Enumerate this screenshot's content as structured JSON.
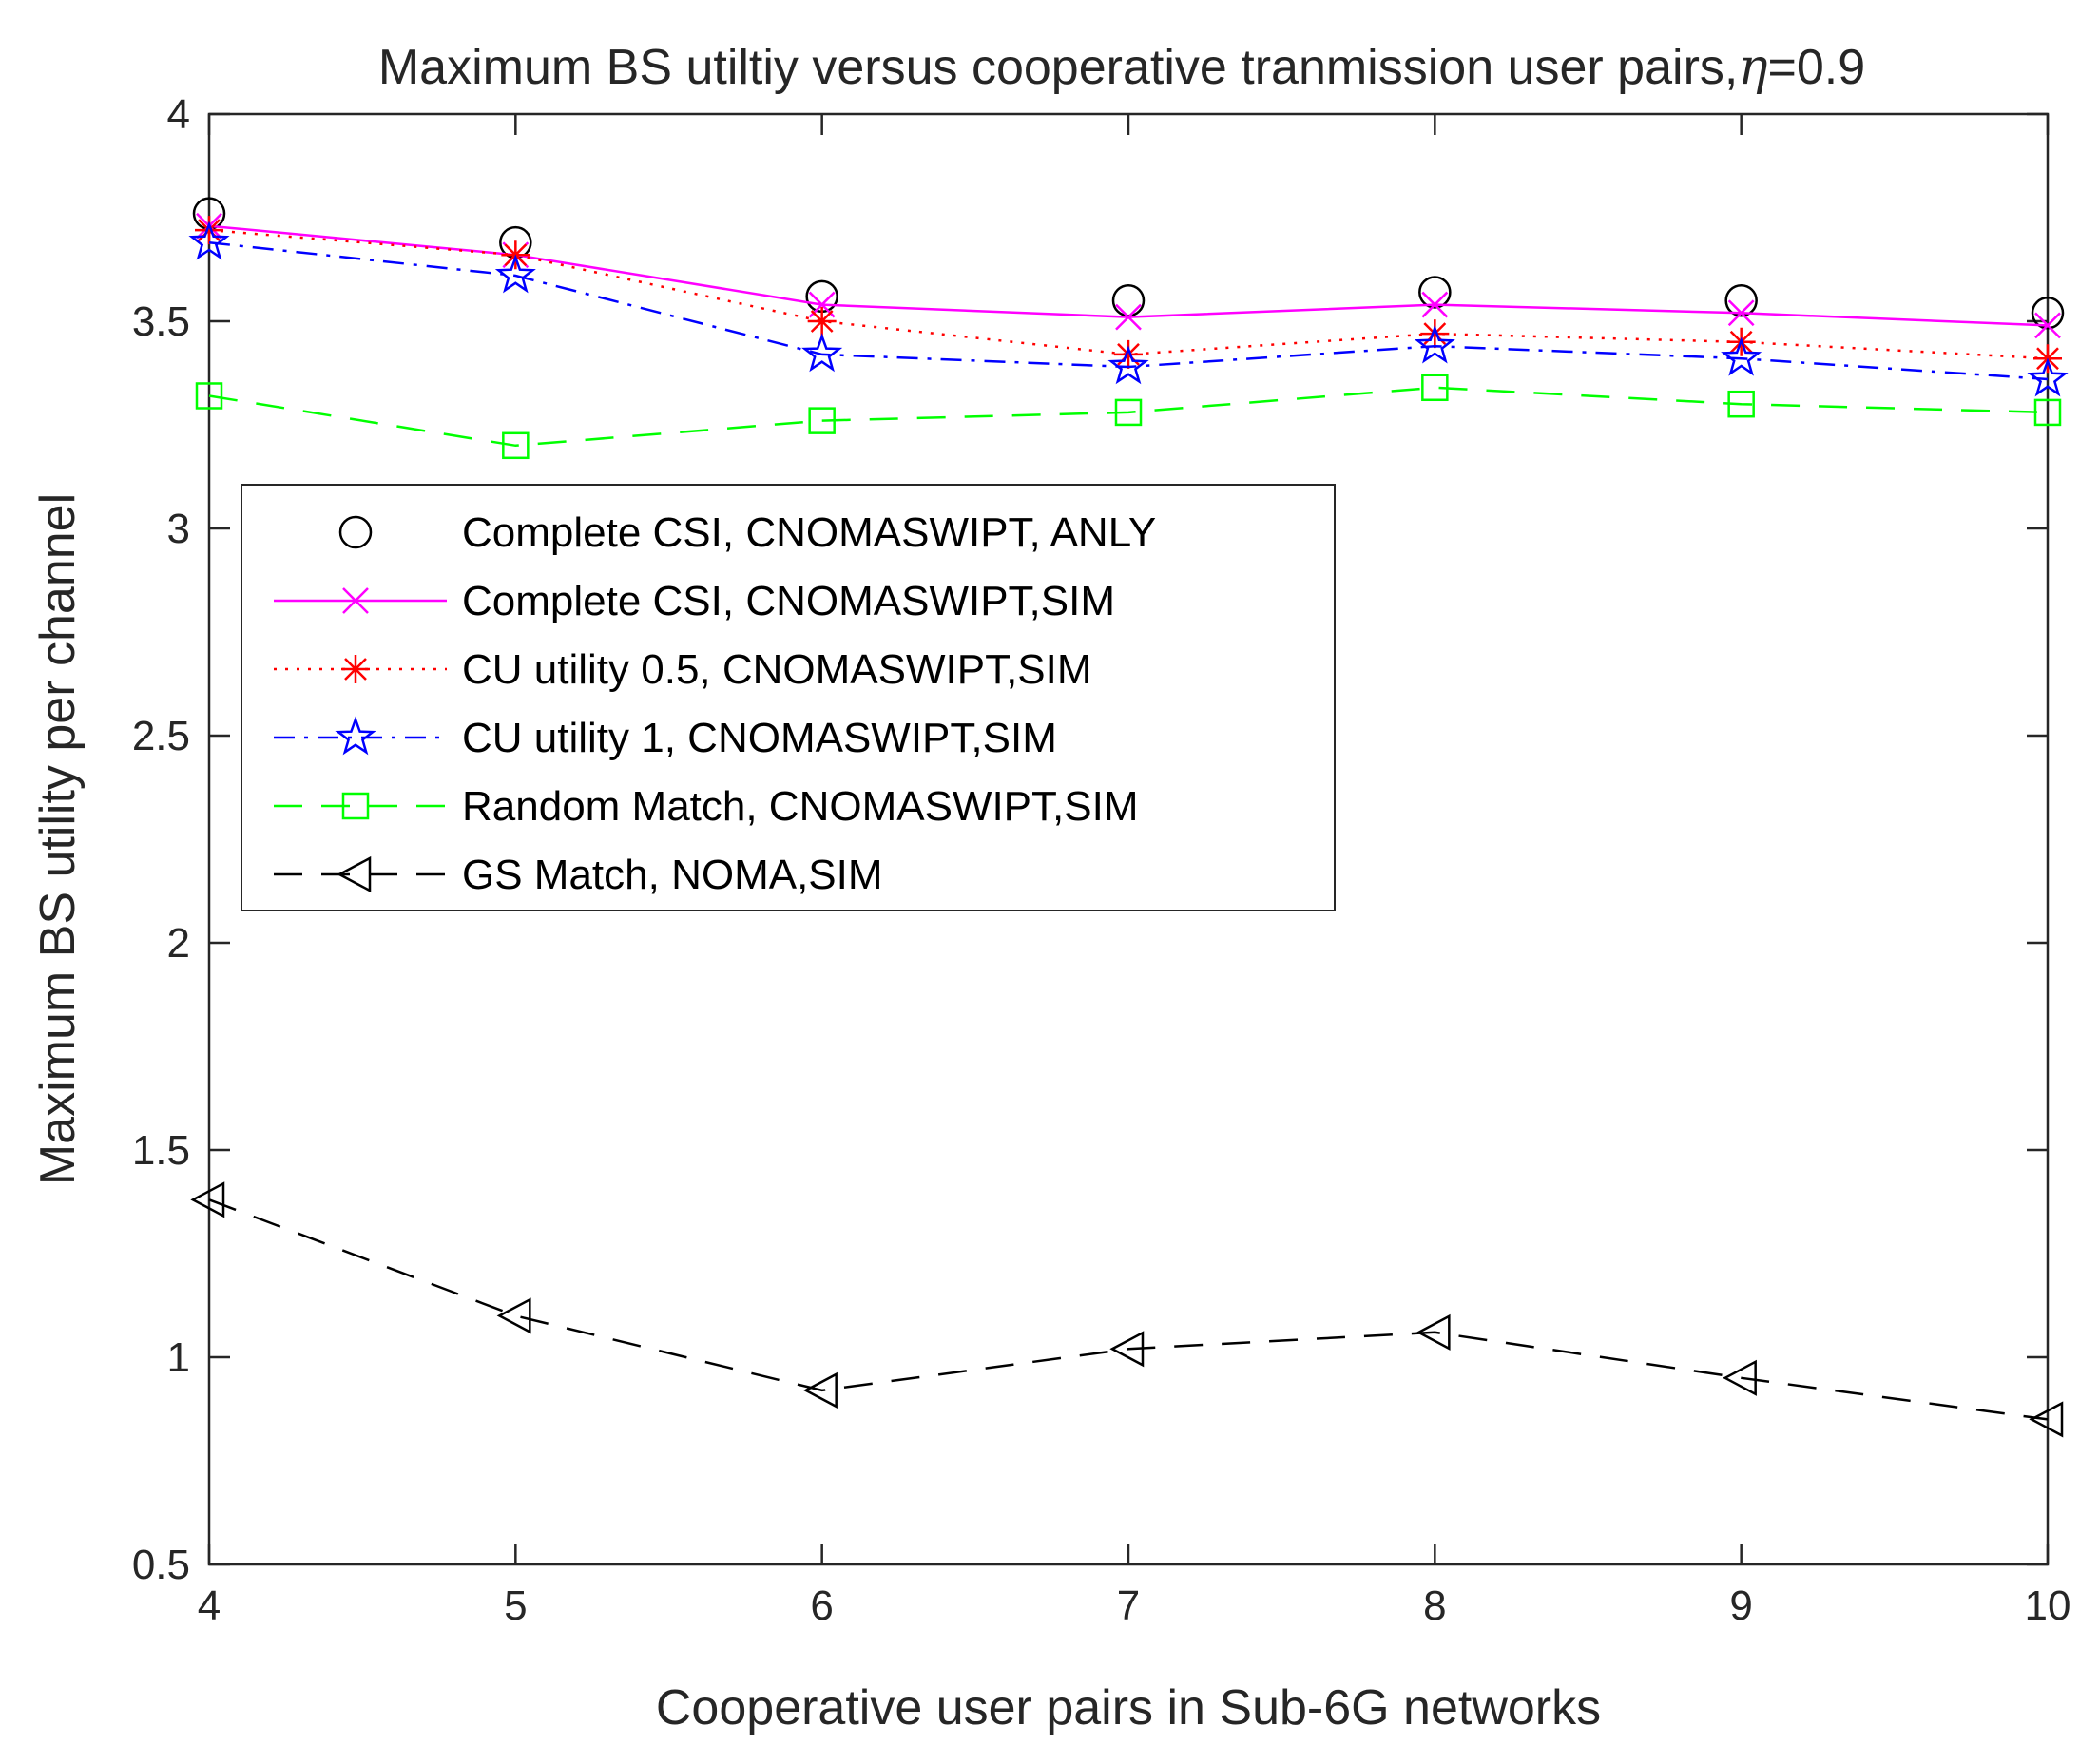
{
  "chart_data": {
    "type": "line",
    "title": "Maximum BS utiltiy versus cooperative tranmission user pairs,",
    "title_symbol": "η",
    "title_suffix": "=0.9",
    "xlabel": "Cooperative user pairs in Sub-6G networks",
    "ylabel": "Maximum BS utility per channel",
    "xlim": [
      4,
      10
    ],
    "ylim": [
      0.5,
      4
    ],
    "xticks": [
      "4",
      "5",
      "6",
      "7",
      "8",
      "9",
      "10"
    ],
    "yticks": [
      "0.5",
      "1",
      "1.5",
      "2",
      "2.5",
      "3",
      "3.5",
      "4"
    ],
    "grid": false,
    "legend_position": "center-left",
    "x": [
      4,
      5,
      6,
      7,
      8,
      9,
      10
    ],
    "series": [
      {
        "name": "Complete CSI, CNOMASWIPT, ANLY",
        "color": "#000000",
        "marker": "circle",
        "line": "none",
        "values": [
          3.76,
          3.69,
          3.56,
          3.55,
          3.57,
          3.55,
          3.52
        ]
      },
      {
        "name": "Complete CSI, CNOMASWIPT,SIM",
        "color": "#ff00ff",
        "marker": "x",
        "line": "solid",
        "values": [
          3.73,
          3.66,
          3.54,
          3.51,
          3.54,
          3.52,
          3.49
        ]
      },
      {
        "name": "CU utility 0.5, CNOMASWIPT,SIM",
        "color": "#ff0000",
        "marker": "asterisk",
        "line": "dotted",
        "values": [
          3.72,
          3.66,
          3.5,
          3.42,
          3.47,
          3.45,
          3.41
        ]
      },
      {
        "name": "CU utility 1,  CNOMASWIPT,SIM",
        "color": "#0000ff",
        "marker": "star",
        "line": "dashdot",
        "values": [
          3.69,
          3.61,
          3.42,
          3.39,
          3.44,
          3.41,
          3.36
        ]
      },
      {
        "name": "Random Match, CNOMASWIPT,SIM",
        "color": "#00ff00",
        "marker": "square",
        "line": "dashed",
        "values": [
          3.32,
          3.2,
          3.26,
          3.28,
          3.34,
          3.3,
          3.28
        ]
      },
      {
        "name": "GS Match, NOMA,SIM",
        "color": "#000000",
        "marker": "triangle-left",
        "line": "dashed",
        "values": [
          1.38,
          1.1,
          0.92,
          1.02,
          1.06,
          0.95,
          0.85
        ]
      }
    ]
  }
}
